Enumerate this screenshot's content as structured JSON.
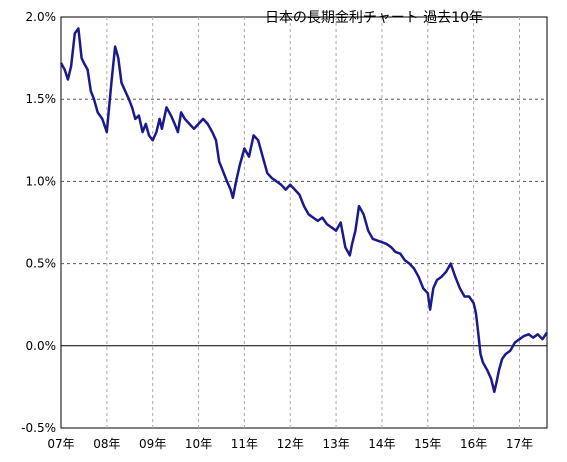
{
  "chart_data": {
    "type": "line",
    "title": "日本の長期金利チャート 過去10年",
    "xlabel": "",
    "ylabel": "",
    "ylim": [
      -0.5,
      2.0
    ],
    "xlim": [
      2007.0,
      2017.6
    ],
    "grid": true,
    "x_ticks": [
      {
        "value": 2007,
        "label": "07年"
      },
      {
        "value": 2008,
        "label": "08年"
      },
      {
        "value": 2009,
        "label": "09年"
      },
      {
        "value": 2010,
        "label": "10年"
      },
      {
        "value": 2011,
        "label": "11年"
      },
      {
        "value": 2012,
        "label": "12年"
      },
      {
        "value": 2013,
        "label": "13年"
      },
      {
        "value": 2014,
        "label": "14年"
      },
      {
        "value": 2015,
        "label": "15年"
      },
      {
        "value": 2016,
        "label": "16年"
      },
      {
        "value": 2017,
        "label": "17年"
      }
    ],
    "y_ticks": [
      {
        "value": 2.0,
        "label": "2.0%"
      },
      {
        "value": 1.5,
        "label": "1.5%"
      },
      {
        "value": 1.0,
        "label": "1.0%"
      },
      {
        "value": 0.5,
        "label": "0.5%"
      },
      {
        "value": 0.0,
        "label": "0.0%"
      },
      {
        "value": -0.5,
        "label": "-0.5%"
      }
    ],
    "series": [
      {
        "color": "#1a1a8c",
        "x": [
          2007.0,
          2007.08,
          2007.15,
          2007.22,
          2007.3,
          2007.38,
          2007.45,
          2007.5,
          2007.58,
          2007.65,
          2007.72,
          2007.8,
          2007.9,
          2008.0,
          2008.05,
          2008.1,
          2008.18,
          2008.25,
          2008.32,
          2008.4,
          2008.48,
          2008.55,
          2008.62,
          2008.7,
          2008.78,
          2008.85,
          2008.92,
          2009.0,
          2009.08,
          2009.15,
          2009.2,
          2009.3,
          2009.4,
          2009.48,
          2009.55,
          2009.62,
          2009.7,
          2009.8,
          2009.9,
          2010.0,
          2010.1,
          2010.2,
          2010.3,
          2010.38,
          2010.45,
          2010.55,
          2010.62,
          2010.7,
          2010.75,
          2010.82,
          2010.9,
          2011.0,
          2011.1,
          2011.2,
          2011.3,
          2011.4,
          2011.5,
          2011.6,
          2011.7,
          2011.8,
          2011.9,
          2012.0,
          2012.1,
          2012.2,
          2012.3,
          2012.4,
          2012.5,
          2012.6,
          2012.7,
          2012.8,
          2012.9,
          2013.0,
          2013.1,
          2013.2,
          2013.3,
          2013.35,
          2013.42,
          2013.5,
          2013.6,
          2013.7,
          2013.8,
          2013.9,
          2014.0,
          2014.1,
          2014.2,
          2014.3,
          2014.4,
          2014.5,
          2014.6,
          2014.7,
          2014.8,
          2014.9,
          2015.0,
          2015.05,
          2015.12,
          2015.2,
          2015.3,
          2015.4,
          2015.5,
          2015.6,
          2015.7,
          2015.8,
          2015.9,
          2016.0,
          2016.05,
          2016.1,
          2016.15,
          2016.2,
          2016.3,
          2016.38,
          2016.45,
          2016.5,
          2016.55,
          2016.62,
          2016.7,
          2016.8,
          2016.9,
          2017.0,
          2017.1,
          2017.2,
          2017.3,
          2017.4,
          2017.5,
          2017.6
        ],
        "y": [
          1.72,
          1.68,
          1.62,
          1.7,
          1.9,
          1.93,
          1.75,
          1.72,
          1.68,
          1.55,
          1.5,
          1.42,
          1.38,
          1.3,
          1.45,
          1.6,
          1.82,
          1.75,
          1.6,
          1.55,
          1.5,
          1.45,
          1.38,
          1.4,
          1.3,
          1.35,
          1.28,
          1.25,
          1.3,
          1.38,
          1.32,
          1.45,
          1.4,
          1.35,
          1.3,
          1.42,
          1.38,
          1.35,
          1.32,
          1.35,
          1.38,
          1.35,
          1.3,
          1.25,
          1.12,
          1.05,
          1.0,
          0.95,
          0.9,
          1.0,
          1.1,
          1.2,
          1.15,
          1.28,
          1.25,
          1.15,
          1.05,
          1.02,
          1.0,
          0.98,
          0.95,
          0.98,
          0.95,
          0.92,
          0.85,
          0.8,
          0.78,
          0.76,
          0.78,
          0.74,
          0.72,
          0.7,
          0.75,
          0.6,
          0.55,
          0.62,
          0.7,
          0.85,
          0.8,
          0.7,
          0.65,
          0.64,
          0.63,
          0.62,
          0.6,
          0.57,
          0.56,
          0.52,
          0.5,
          0.47,
          0.42,
          0.35,
          0.32,
          0.22,
          0.35,
          0.4,
          0.42,
          0.45,
          0.5,
          0.42,
          0.35,
          0.3,
          0.3,
          0.26,
          0.2,
          0.08,
          -0.05,
          -0.1,
          -0.15,
          -0.2,
          -0.28,
          -0.22,
          -0.15,
          -0.08,
          -0.05,
          -0.03,
          0.02,
          0.04,
          0.06,
          0.07,
          0.05,
          0.07,
          0.04,
          0.08
        ]
      }
    ]
  }
}
